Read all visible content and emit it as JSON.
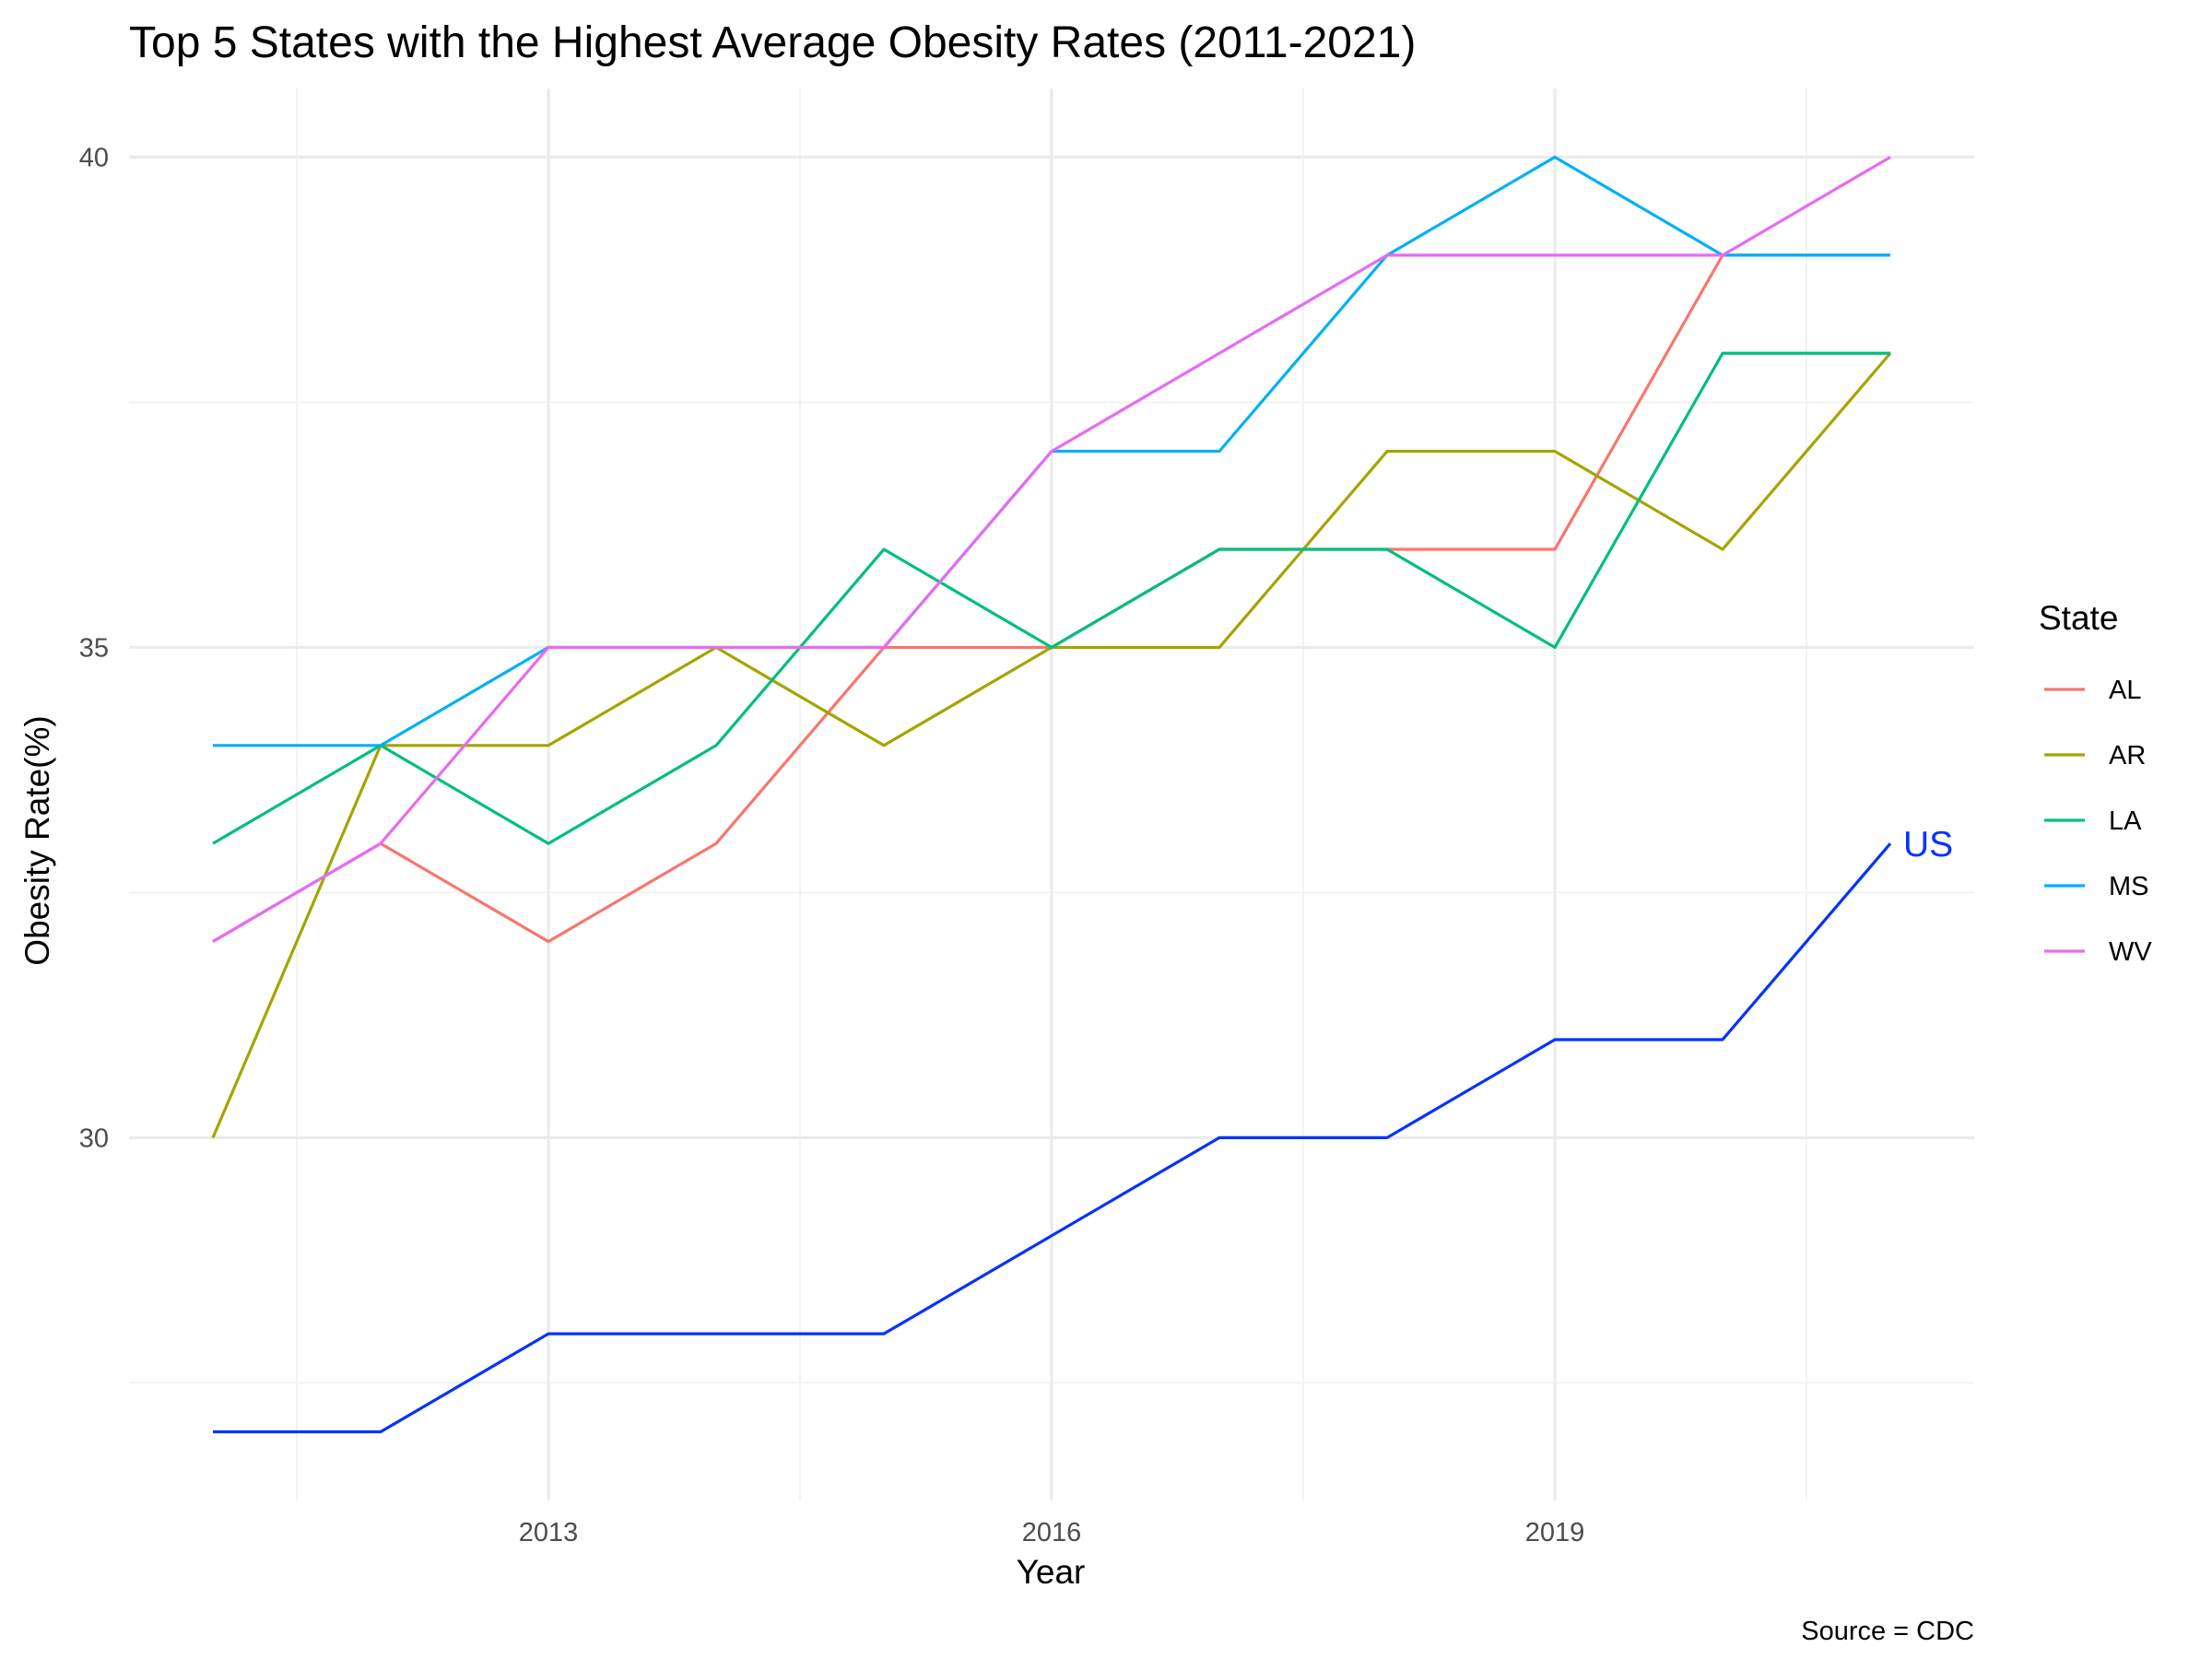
{
  "chart_data": {
    "type": "line",
    "title": "Top 5 States with the Highest Average Obesity Rates (2011-2021)",
    "xlabel": "Year",
    "ylabel": "Obesity Rate(%)",
    "caption": "Source = CDC",
    "x": [
      2011,
      2012,
      2013,
      2014,
      2015,
      2016,
      2017,
      2018,
      2019,
      2020,
      2021
    ],
    "xlim": [
      2010.5,
      2021.5
    ],
    "ylim": [
      26.3,
      40.7
    ],
    "x_ticks": [
      2013,
      2016,
      2019
    ],
    "y_ticks": [
      30,
      35,
      40
    ],
    "grid": true,
    "legend": {
      "title": "State",
      "position": "right"
    },
    "series": [
      {
        "name": "AL",
        "color": "#F8766D",
        "values": [
          32,
          33,
          32,
          33,
          35,
          35,
          36,
          36,
          36,
          39,
          39
        ]
      },
      {
        "name": "AR",
        "color": "#A3A500",
        "values": [
          30,
          34,
          34,
          35,
          34,
          35,
          35,
          37,
          37,
          36,
          38
        ]
      },
      {
        "name": "LA",
        "color": "#00BF7D",
        "values": [
          33,
          34,
          33,
          34,
          36,
          35,
          36,
          36,
          35,
          38,
          38
        ]
      },
      {
        "name": "MS",
        "color": "#00B0F6",
        "values": [
          34,
          34,
          35,
          35,
          35,
          37,
          37,
          39,
          40,
          39,
          39
        ]
      },
      {
        "name": "WV",
        "color": "#E76BF3",
        "values": [
          32,
          33,
          35,
          35,
          35,
          37,
          38,
          39,
          39,
          39,
          40
        ]
      }
    ],
    "reference_series": {
      "name": "US",
      "color": "#0433FF",
      "label": "US",
      "values": [
        27,
        27,
        28,
        28,
        28,
        29,
        30,
        30,
        31,
        31,
        33
      ]
    }
  }
}
